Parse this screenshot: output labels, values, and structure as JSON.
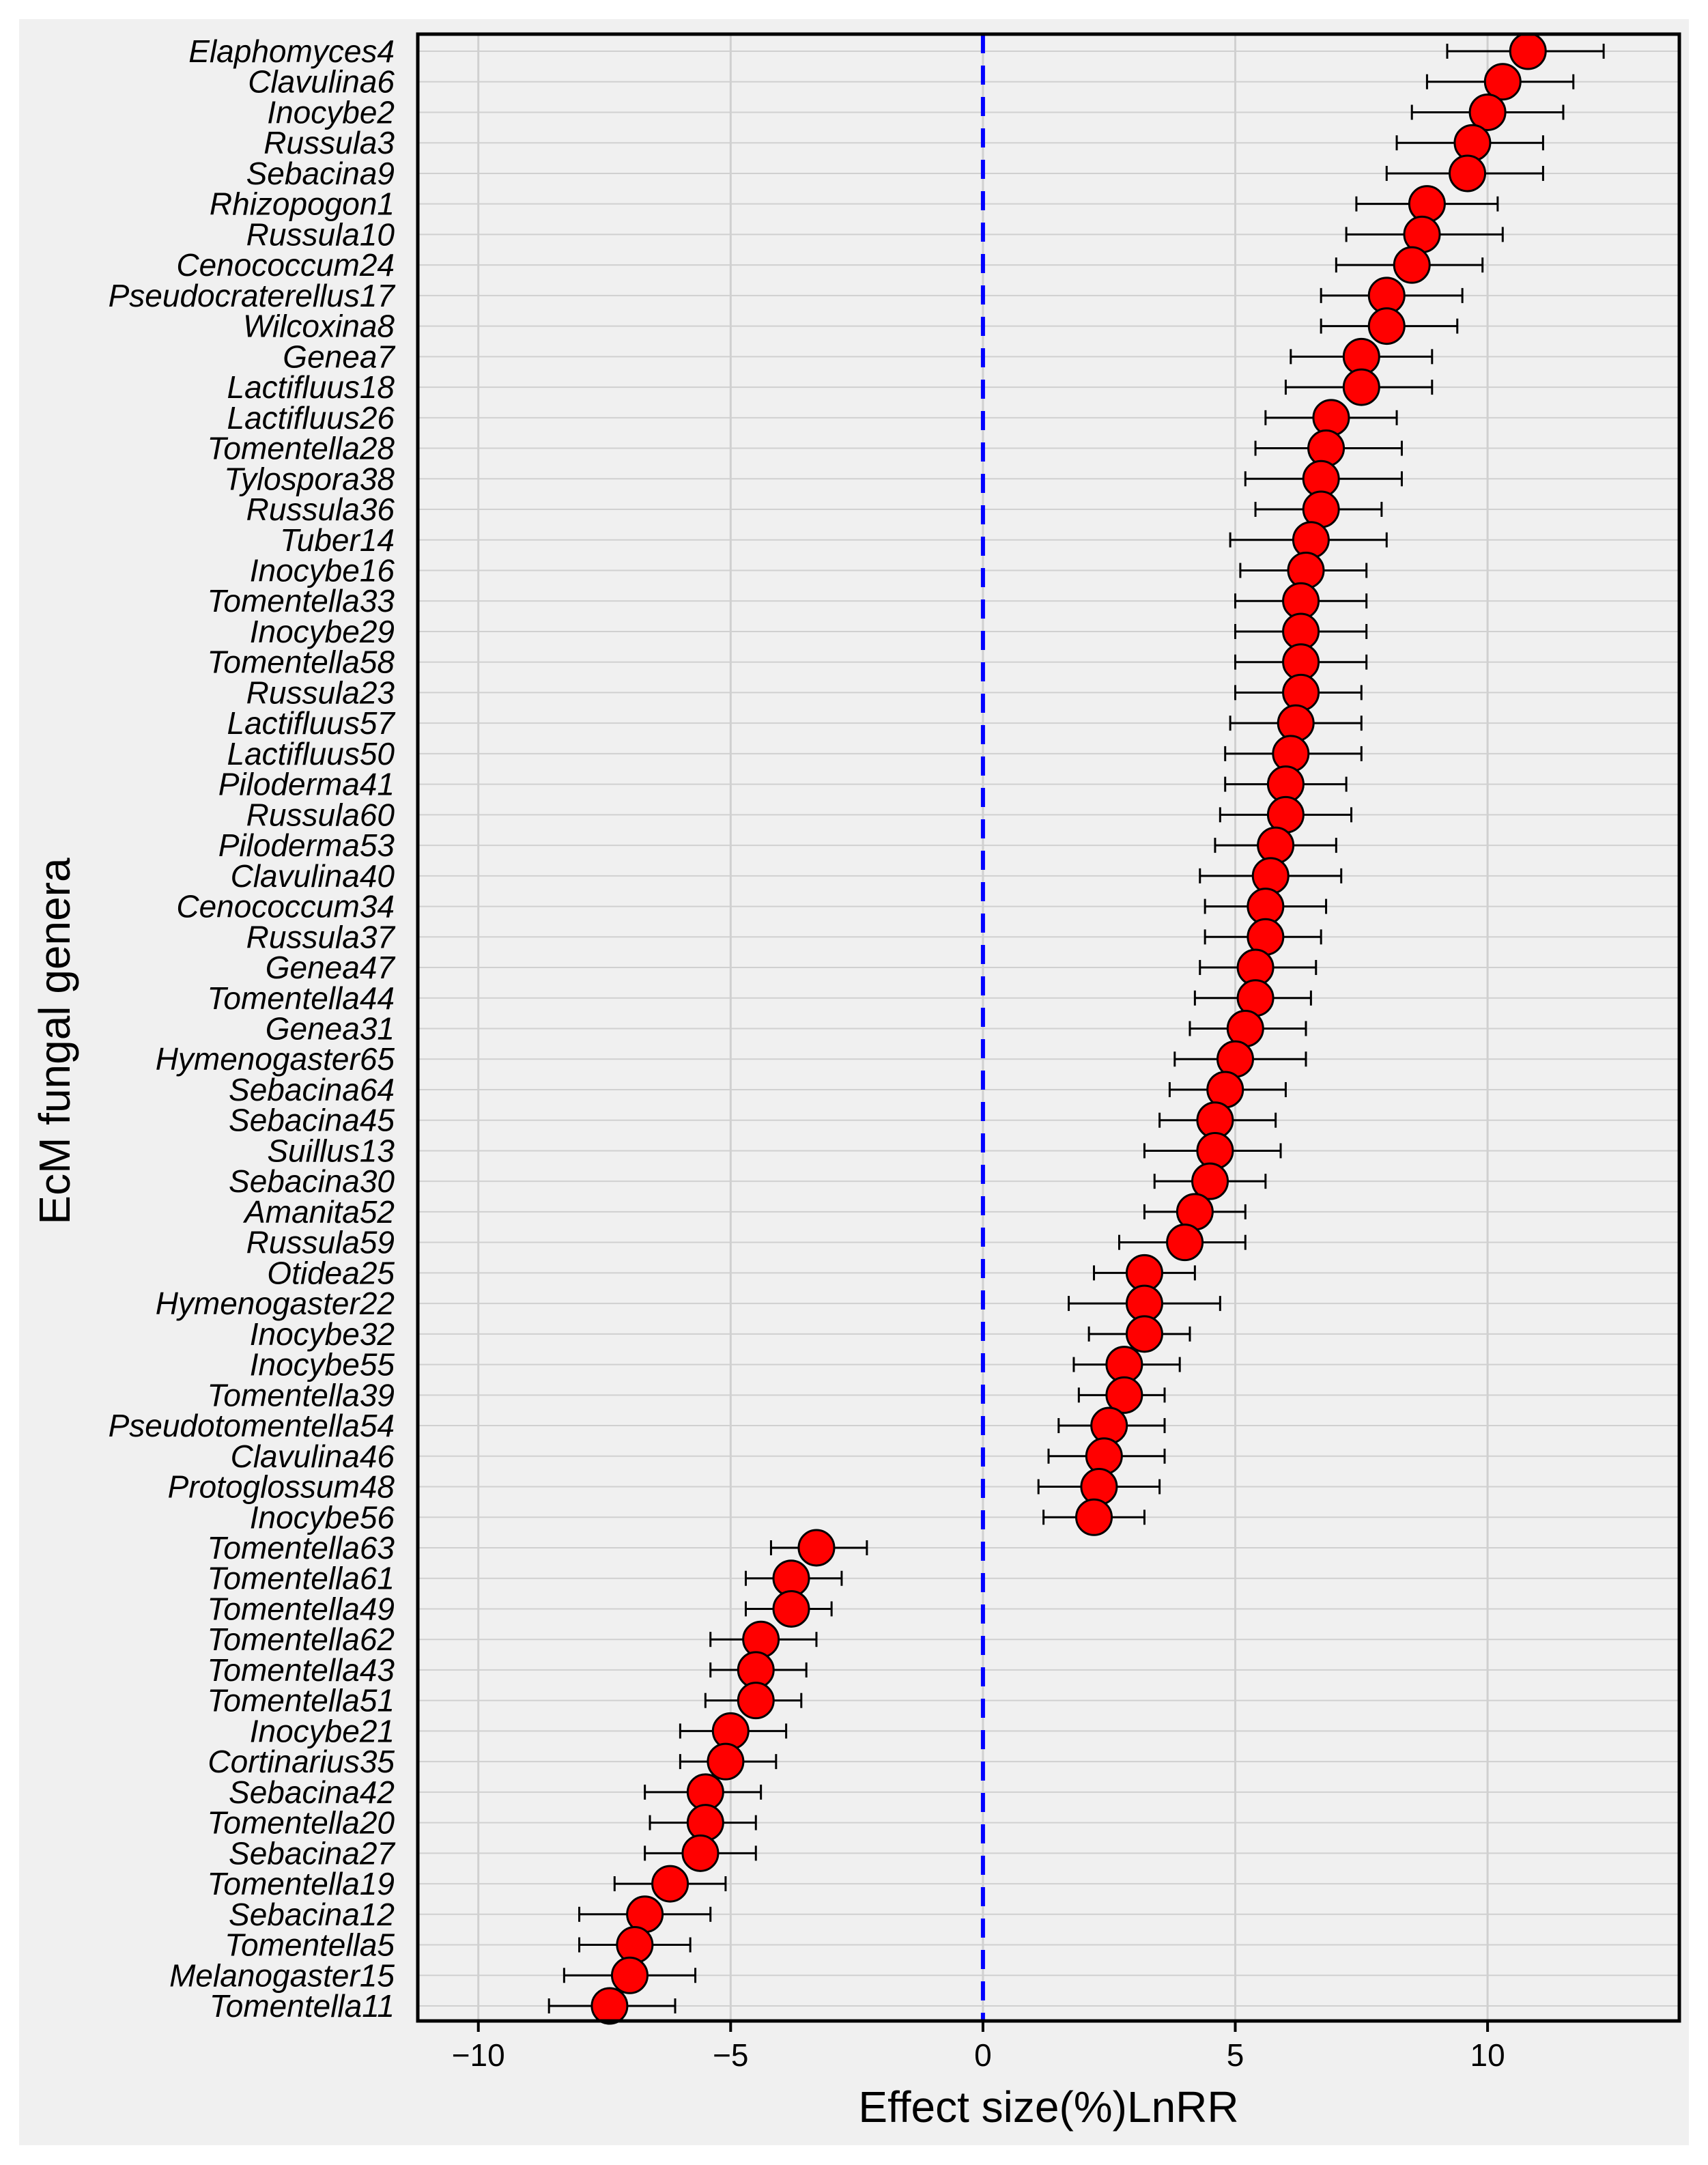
{
  "chart_data": {
    "type": "scatter",
    "subtype": "forest-plot",
    "xlabel": "Effect size(%)LnRR",
    "ylabel": "EcM fungal genera",
    "xlim": [
      -11.2,
      13.8
    ],
    "xticks": [
      -10,
      -5,
      0,
      5,
      10
    ],
    "xtick_labels": [
      "−10",
      "−5",
      "0",
      "5",
      "10"
    ],
    "reference_line": 0,
    "grid": true,
    "colors": {
      "point": "#ff0000",
      "reference": "#0000ff",
      "plot_bg": "#f0f0f0",
      "grid": "#d0d0d0"
    },
    "points": [
      {
        "label": "Elaphomyces4",
        "value": 10.8,
        "ci": [
          9.2,
          12.3
        ]
      },
      {
        "label": "Clavulina6",
        "value": 10.3,
        "ci": [
          8.8,
          11.7
        ]
      },
      {
        "label": "Inocybe2",
        "value": 10.0,
        "ci": [
          8.5,
          11.5
        ]
      },
      {
        "label": "Russula3",
        "value": 9.7,
        "ci": [
          8.2,
          11.1
        ]
      },
      {
        "label": "Sebacina9",
        "value": 9.6,
        "ci": [
          8.0,
          11.1
        ]
      },
      {
        "label": "Rhizopogon1",
        "value": 8.8,
        "ci": [
          7.4,
          10.2
        ]
      },
      {
        "label": "Russula10",
        "value": 8.7,
        "ci": [
          7.2,
          10.3
        ]
      },
      {
        "label": "Cenococcum24",
        "value": 8.5,
        "ci": [
          7.0,
          9.9
        ]
      },
      {
        "label": "Pseudocraterellus17",
        "value": 8.0,
        "ci": [
          6.7,
          9.5
        ]
      },
      {
        "label": "Wilcoxina8",
        "value": 8.0,
        "ci": [
          6.7,
          9.4
        ]
      },
      {
        "label": "Genea7",
        "value": 7.5,
        "ci": [
          6.1,
          8.9
        ]
      },
      {
        "label": "Lactifluus18",
        "value": 7.5,
        "ci": [
          6.0,
          8.9
        ]
      },
      {
        "label": "Lactifluus26",
        "value": 6.9,
        "ci": [
          5.6,
          8.2
        ]
      },
      {
        "label": "Tomentella28",
        "value": 6.8,
        "ci": [
          5.4,
          8.3
        ]
      },
      {
        "label": "Tylospora38",
        "value": 6.7,
        "ci": [
          5.2,
          8.3
        ]
      },
      {
        "label": "Russula36",
        "value": 6.7,
        "ci": [
          5.4,
          7.9
        ]
      },
      {
        "label": "Tuber14",
        "value": 6.5,
        "ci": [
          4.9,
          8.0
        ]
      },
      {
        "label": "Inocybe16",
        "value": 6.4,
        "ci": [
          5.1,
          7.6
        ]
      },
      {
        "label": "Tomentella33",
        "value": 6.3,
        "ci": [
          5.0,
          7.6
        ]
      },
      {
        "label": "Inocybe29",
        "value": 6.3,
        "ci": [
          5.0,
          7.6
        ]
      },
      {
        "label": "Tomentella58",
        "value": 6.3,
        "ci": [
          5.0,
          7.6
        ]
      },
      {
        "label": "Russula23",
        "value": 6.3,
        "ci": [
          5.0,
          7.5
        ]
      },
      {
        "label": "Lactifluus57",
        "value": 6.2,
        "ci": [
          4.9,
          7.5
        ]
      },
      {
        "label": "Lactifluus50",
        "value": 6.1,
        "ci": [
          4.8,
          7.5
        ]
      },
      {
        "label": "Piloderma41",
        "value": 6.0,
        "ci": [
          4.8,
          7.2
        ]
      },
      {
        "label": "Russula60",
        "value": 6.0,
        "ci": [
          4.7,
          7.3
        ]
      },
      {
        "label": "Piloderma53",
        "value": 5.8,
        "ci": [
          4.6,
          7.0
        ]
      },
      {
        "label": "Clavulina40",
        "value": 5.7,
        "ci": [
          4.3,
          7.1
        ]
      },
      {
        "label": "Cenococcum34",
        "value": 5.6,
        "ci": [
          4.4,
          6.8
        ]
      },
      {
        "label": "Russula37",
        "value": 5.6,
        "ci": [
          4.4,
          6.7
        ]
      },
      {
        "label": "Genea47",
        "value": 5.4,
        "ci": [
          4.3,
          6.6
        ]
      },
      {
        "label": "Tomentella44",
        "value": 5.4,
        "ci": [
          4.2,
          6.5
        ]
      },
      {
        "label": "Genea31",
        "value": 5.2,
        "ci": [
          4.1,
          6.4
        ]
      },
      {
        "label": "Hymenogaster65",
        "value": 5.0,
        "ci": [
          3.8,
          6.4
        ]
      },
      {
        "label": "Sebacina64",
        "value": 4.8,
        "ci": [
          3.7,
          6.0
        ]
      },
      {
        "label": "Sebacina45",
        "value": 4.6,
        "ci": [
          3.5,
          5.8
        ]
      },
      {
        "label": "Suillus13",
        "value": 4.6,
        "ci": [
          3.2,
          5.9
        ]
      },
      {
        "label": "Sebacina30",
        "value": 4.5,
        "ci": [
          3.4,
          5.6
        ]
      },
      {
        "label": "Amanita52",
        "value": 4.2,
        "ci": [
          3.2,
          5.2
        ]
      },
      {
        "label": "Russula59",
        "value": 4.0,
        "ci": [
          2.7,
          5.2
        ]
      },
      {
        "label": "Otidea25",
        "value": 3.2,
        "ci": [
          2.2,
          4.2
        ]
      },
      {
        "label": "Hymenogaster22",
        "value": 3.2,
        "ci": [
          1.7,
          4.7
        ]
      },
      {
        "label": "Inocybe32",
        "value": 3.2,
        "ci": [
          2.1,
          4.1
        ]
      },
      {
        "label": "Inocybe55",
        "value": 2.8,
        "ci": [
          1.8,
          3.9
        ]
      },
      {
        "label": "Tomentella39",
        "value": 2.8,
        "ci": [
          1.9,
          3.6
        ]
      },
      {
        "label": "Pseudotomentella54",
        "value": 2.5,
        "ci": [
          1.5,
          3.6
        ]
      },
      {
        "label": "Clavulina46",
        "value": 2.4,
        "ci": [
          1.3,
          3.6
        ]
      },
      {
        "label": "Protoglossum48",
        "value": 2.3,
        "ci": [
          1.1,
          3.5
        ]
      },
      {
        "label": "Inocybe56",
        "value": 2.2,
        "ci": [
          1.2,
          3.2
        ]
      },
      {
        "label": "Tomentella63",
        "value": -3.3,
        "ci": [
          -4.2,
          -2.3
        ]
      },
      {
        "label": "Tomentella61",
        "value": -3.8,
        "ci": [
          -4.7,
          -2.8
        ]
      },
      {
        "label": "Tomentella49",
        "value": -3.8,
        "ci": [
          -4.7,
          -3.0
        ]
      },
      {
        "label": "Tomentella62",
        "value": -4.4,
        "ci": [
          -5.4,
          -3.3
        ]
      },
      {
        "label": "Tomentella43",
        "value": -4.5,
        "ci": [
          -5.4,
          -3.5
        ]
      },
      {
        "label": "Tomentella51",
        "value": -4.5,
        "ci": [
          -5.5,
          -3.6
        ]
      },
      {
        "label": "Inocybe21",
        "value": -5.0,
        "ci": [
          -6.0,
          -3.9
        ]
      },
      {
        "label": "Cortinarius35",
        "value": -5.1,
        "ci": [
          -6.0,
          -4.1
        ]
      },
      {
        "label": "Sebacina42",
        "value": -5.5,
        "ci": [
          -6.7,
          -4.4
        ]
      },
      {
        "label": "Tomentella20",
        "value": -5.5,
        "ci": [
          -6.6,
          -4.5
        ]
      },
      {
        "label": "Sebacina27",
        "value": -5.6,
        "ci": [
          -6.7,
          -4.5
        ]
      },
      {
        "label": "Tomentella19",
        "value": -6.2,
        "ci": [
          -7.3,
          -5.1
        ]
      },
      {
        "label": "Sebacina12",
        "value": -6.7,
        "ci": [
          -8.0,
          -5.4
        ]
      },
      {
        "label": "Tomentella5",
        "value": -6.9,
        "ci": [
          -8.0,
          -5.8
        ]
      },
      {
        "label": "Melanogaster15",
        "value": -7.0,
        "ci": [
          -8.3,
          -5.7
        ]
      },
      {
        "label": "Tomentella11",
        "value": -7.4,
        "ci": [
          -8.6,
          -6.1
        ]
      }
    ]
  }
}
